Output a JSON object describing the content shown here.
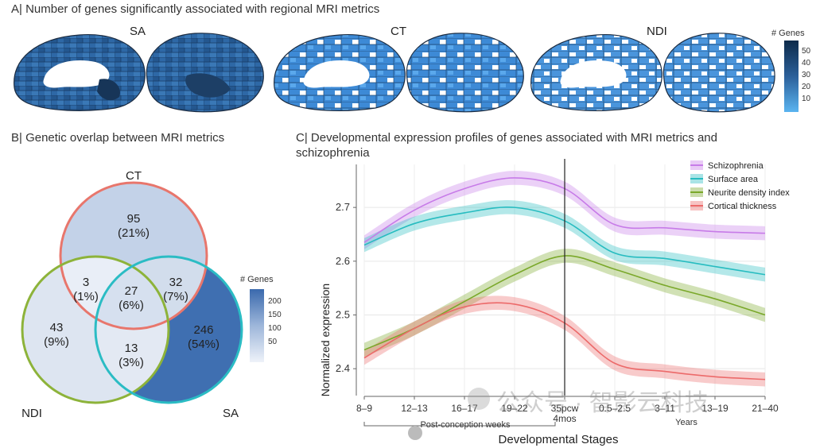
{
  "panel_a": {
    "title": "A| Number of genes significantly associated with regional MRI metrics",
    "metrics": [
      "SA",
      "CT",
      "NDI"
    ],
    "colorbar": {
      "title": "# Genes",
      "ticks": [
        "50",
        "40",
        "30",
        "20",
        "10"
      ],
      "colors": {
        "high": "#0d2a4a",
        "low": "#5ab4f0"
      }
    }
  },
  "panel_b": {
    "title": "B| Genetic overlap between MRI metrics",
    "set_labels": {
      "ct": "CT",
      "ndi": "NDI",
      "sa": "SA"
    },
    "regions": [
      {
        "id": "ct_only",
        "count": "95",
        "pct": "(21%)",
        "color": "#c3d2e8"
      },
      {
        "id": "ct_ndi",
        "count": "3",
        "pct": "(1%)",
        "color": "#e9eef7"
      },
      {
        "id": "all",
        "count": "27",
        "pct": "(6%)",
        "color": "#d6e0ef"
      },
      {
        "id": "ct_sa",
        "count": "32",
        "pct": "(7%)",
        "color": "#d2ddec"
      },
      {
        "id": "ndi_only",
        "count": "43",
        "pct": "(9%)",
        "color": "#dde5f1"
      },
      {
        "id": "ndi_sa",
        "count": "13",
        "pct": "(3%)",
        "color": "#e3e9f3"
      },
      {
        "id": "sa_only",
        "count": "246",
        "pct": "(54%)",
        "color": "#3f6fb1"
      }
    ],
    "colorbar": {
      "title": "# Genes",
      "ticks": [
        "200",
        "150",
        "100",
        "50"
      ],
      "colors": {
        "high": "#3a69ad",
        "low": "#eef2f9"
      }
    },
    "circle_colors": {
      "ct": "#e8766c",
      "ndi": "#8db33a",
      "sa": "#2bbcc4"
    }
  },
  "panel_c": {
    "title_line1": "C| Developmental expression profiles of genes associated with MRI metrics and",
    "title_line2": "schizophrenia",
    "group_labels": {
      "pcw": "Post-conception weeks",
      "years": "Years"
    },
    "watermark": "公众号 · 智影云科技"
  },
  "chart_data": {
    "type": "line",
    "title": "Developmental expression profiles of genes associated with MRI metrics and schizophrenia",
    "xlabel": "Developmental Stages",
    "ylabel": "Normalized expression",
    "categories": [
      "8–9",
      "12–13",
      "16–17",
      "19–22",
      "35pcw–4mos",
      "0.5–2.5",
      "3–11",
      "13–19",
      "21–40"
    ],
    "ylim": [
      2.35,
      2.78
    ],
    "yticks": [
      2.4,
      2.5,
      2.6,
      2.7
    ],
    "grid": true,
    "legend_position": "top-right",
    "divider_category": "35pcw–4mos",
    "series": [
      {
        "name": "Schizophrenia",
        "color": "#c77be8",
        "values": [
          2.635,
          2.695,
          2.735,
          2.755,
          2.735,
          2.668,
          2.662,
          2.655,
          2.652
        ]
      },
      {
        "name": "Surface area",
        "color": "#27bcc0",
        "values": [
          2.63,
          2.67,
          2.69,
          2.7,
          2.675,
          2.615,
          2.605,
          2.59,
          2.575
        ]
      },
      {
        "name": "Neurite density index",
        "color": "#7aa82a",
        "values": [
          2.435,
          2.475,
          2.525,
          2.575,
          2.61,
          2.585,
          2.555,
          2.53,
          2.5
        ]
      },
      {
        "name": "Cortical thickness",
        "color": "#ec6a6a",
        "values": [
          2.42,
          2.475,
          2.515,
          2.52,
          2.485,
          2.41,
          2.395,
          2.385,
          2.38
        ]
      }
    ]
  }
}
